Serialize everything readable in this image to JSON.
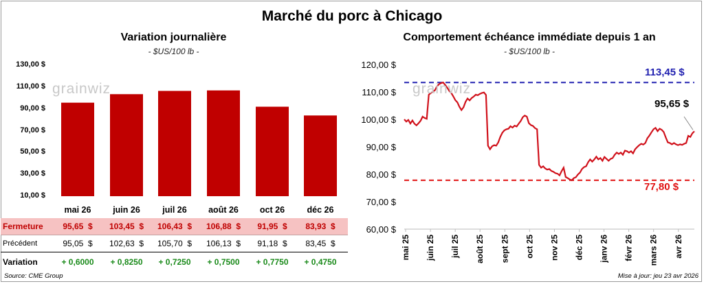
{
  "title": "Marché du porc à Chicago",
  "left": {
    "title": "Variation journalière",
    "subtitle": "- $US/100 lb -",
    "watermark": "grainwiz"
  },
  "right": {
    "title": "Comportement  échéance immédiate depuis 1 an",
    "subtitle": "- $US/100 lb -",
    "watermark": "grainwiz",
    "max_label": "113,45 $",
    "min_label": "77,80 $",
    "last_label": "95,65 $"
  },
  "table": {
    "row_fermeture": "Fermeture",
    "row_precedent": "Précédent",
    "row_variation": "Variation",
    "fermeture": [
      "95,65  $",
      "103,45  $",
      "106,43  $",
      "106,88  $",
      "91,95  $",
      "83,93  $"
    ],
    "precedent": [
      "95,05  $",
      "102,63  $",
      "105,70  $",
      "106,13  $",
      "91,18  $",
      "83,45  $"
    ],
    "variation": [
      "+ 0,6000",
      "+ 0,8250",
      "+ 0,7250",
      "+ 0,7500",
      "+ 0,7750",
      "+ 0,4750"
    ]
  },
  "footer": {
    "source": "Source: CME Group",
    "updated": "Mise à jour: jeu 23 avr 2026"
  },
  "colors": {
    "bar": "#c00000",
    "line": "#d0101a",
    "max_line": "#2020b0",
    "min_line": "#e01010"
  },
  "chart_data": [
    {
      "type": "bar",
      "title": "Variation journalière",
      "ylabel": "$US/100 lb",
      "categories": [
        "mai 26",
        "juin 26",
        "juil 26",
        "août 26",
        "oct 26",
        "déc 26"
      ],
      "values": [
        95.65,
        103.45,
        106.43,
        106.88,
        91.95,
        83.93
      ],
      "ylim": [
        10,
        130
      ],
      "yticks": [
        "130,00 $",
        "110,00 $",
        "90,00 $",
        "70,00 $",
        "50,00 $",
        "30,00 $",
        "10,00 $"
      ],
      "ytick_values": [
        130,
        110,
        90,
        70,
        50,
        30,
        10
      ]
    },
    {
      "type": "line",
      "title": "Comportement  échéance immédiate depuis 1 an",
      "ylabel": "$US/100 lb",
      "ylim": [
        60,
        120
      ],
      "yticks": [
        "120,00 $",
        "110,00 $",
        "100,00 $",
        "90,00 $",
        "80,00 $",
        "70,00 $",
        "60,00 $"
      ],
      "ytick_values": [
        120,
        110,
        100,
        90,
        80,
        70,
        60
      ],
      "xticks": [
        "mai 25",
        "juin 25",
        "juil 25",
        "août 25",
        "sept 25",
        "oct 25",
        "nov 25",
        "déc 25",
        "janv 26",
        "févr 26",
        "mars 26",
        "avr 26"
      ],
      "max": 113.45,
      "min": 77.8,
      "last": 95.65,
      "series": [
        {
          "name": "Échéance immédiate",
          "values": [
            100.0,
            99.2,
            99.8,
            98.5,
            99.6,
            98.4,
            97.8,
            98.6,
            99.5,
            101.0,
            100.5,
            100.2,
            109.0,
            109.6,
            110.1,
            110.6,
            112.0,
            112.8,
            113.2,
            113.45,
            112.6,
            111.6,
            110.4,
            109.6,
            108.4,
            107.0,
            106.2,
            104.6,
            103.4,
            104.4,
            106.4,
            107.6,
            106.9,
            107.8,
            108.3,
            109.0,
            108.8,
            109.3,
            109.6,
            109.8,
            108.9,
            90.4,
            89.1,
            90.2,
            90.6,
            90.4,
            91.6,
            93.6,
            95.1,
            96.0,
            96.4,
            96.6,
            97.5,
            97.0,
            97.7,
            97.4,
            98.4,
            99.4,
            100.8,
            101.4,
            101.0,
            98.6,
            97.9,
            97.6,
            96.8,
            96.4,
            83.4,
            82.4,
            82.9,
            82.1,
            81.7,
            81.9,
            81.2,
            80.9,
            80.4,
            80.2,
            79.6,
            81.1,
            82.4,
            79.0,
            78.6,
            78.1,
            77.8,
            78.6,
            78.9,
            79.9,
            80.6,
            81.9,
            82.6,
            82.9,
            84.4,
            85.4,
            84.6,
            85.4,
            86.4,
            85.4,
            85.9,
            84.9,
            86.3,
            85.6,
            84.9,
            85.6,
            85.9,
            87.1,
            87.9,
            87.4,
            87.9,
            87.1,
            88.6,
            88.4,
            87.9,
            88.4,
            87.6,
            89.1,
            89.9,
            90.6,
            91.1,
            90.8,
            91.4,
            93.1,
            94.1,
            95.3,
            96.4,
            96.9,
            95.7,
            96.6,
            96.2,
            95.4,
            93.4,
            91.6,
            91.4,
            90.9,
            91.4,
            90.9,
            90.6,
            90.9,
            90.7,
            91.1,
            91.4,
            94.0,
            93.6,
            94.9,
            95.65
          ]
        }
      ]
    }
  ]
}
